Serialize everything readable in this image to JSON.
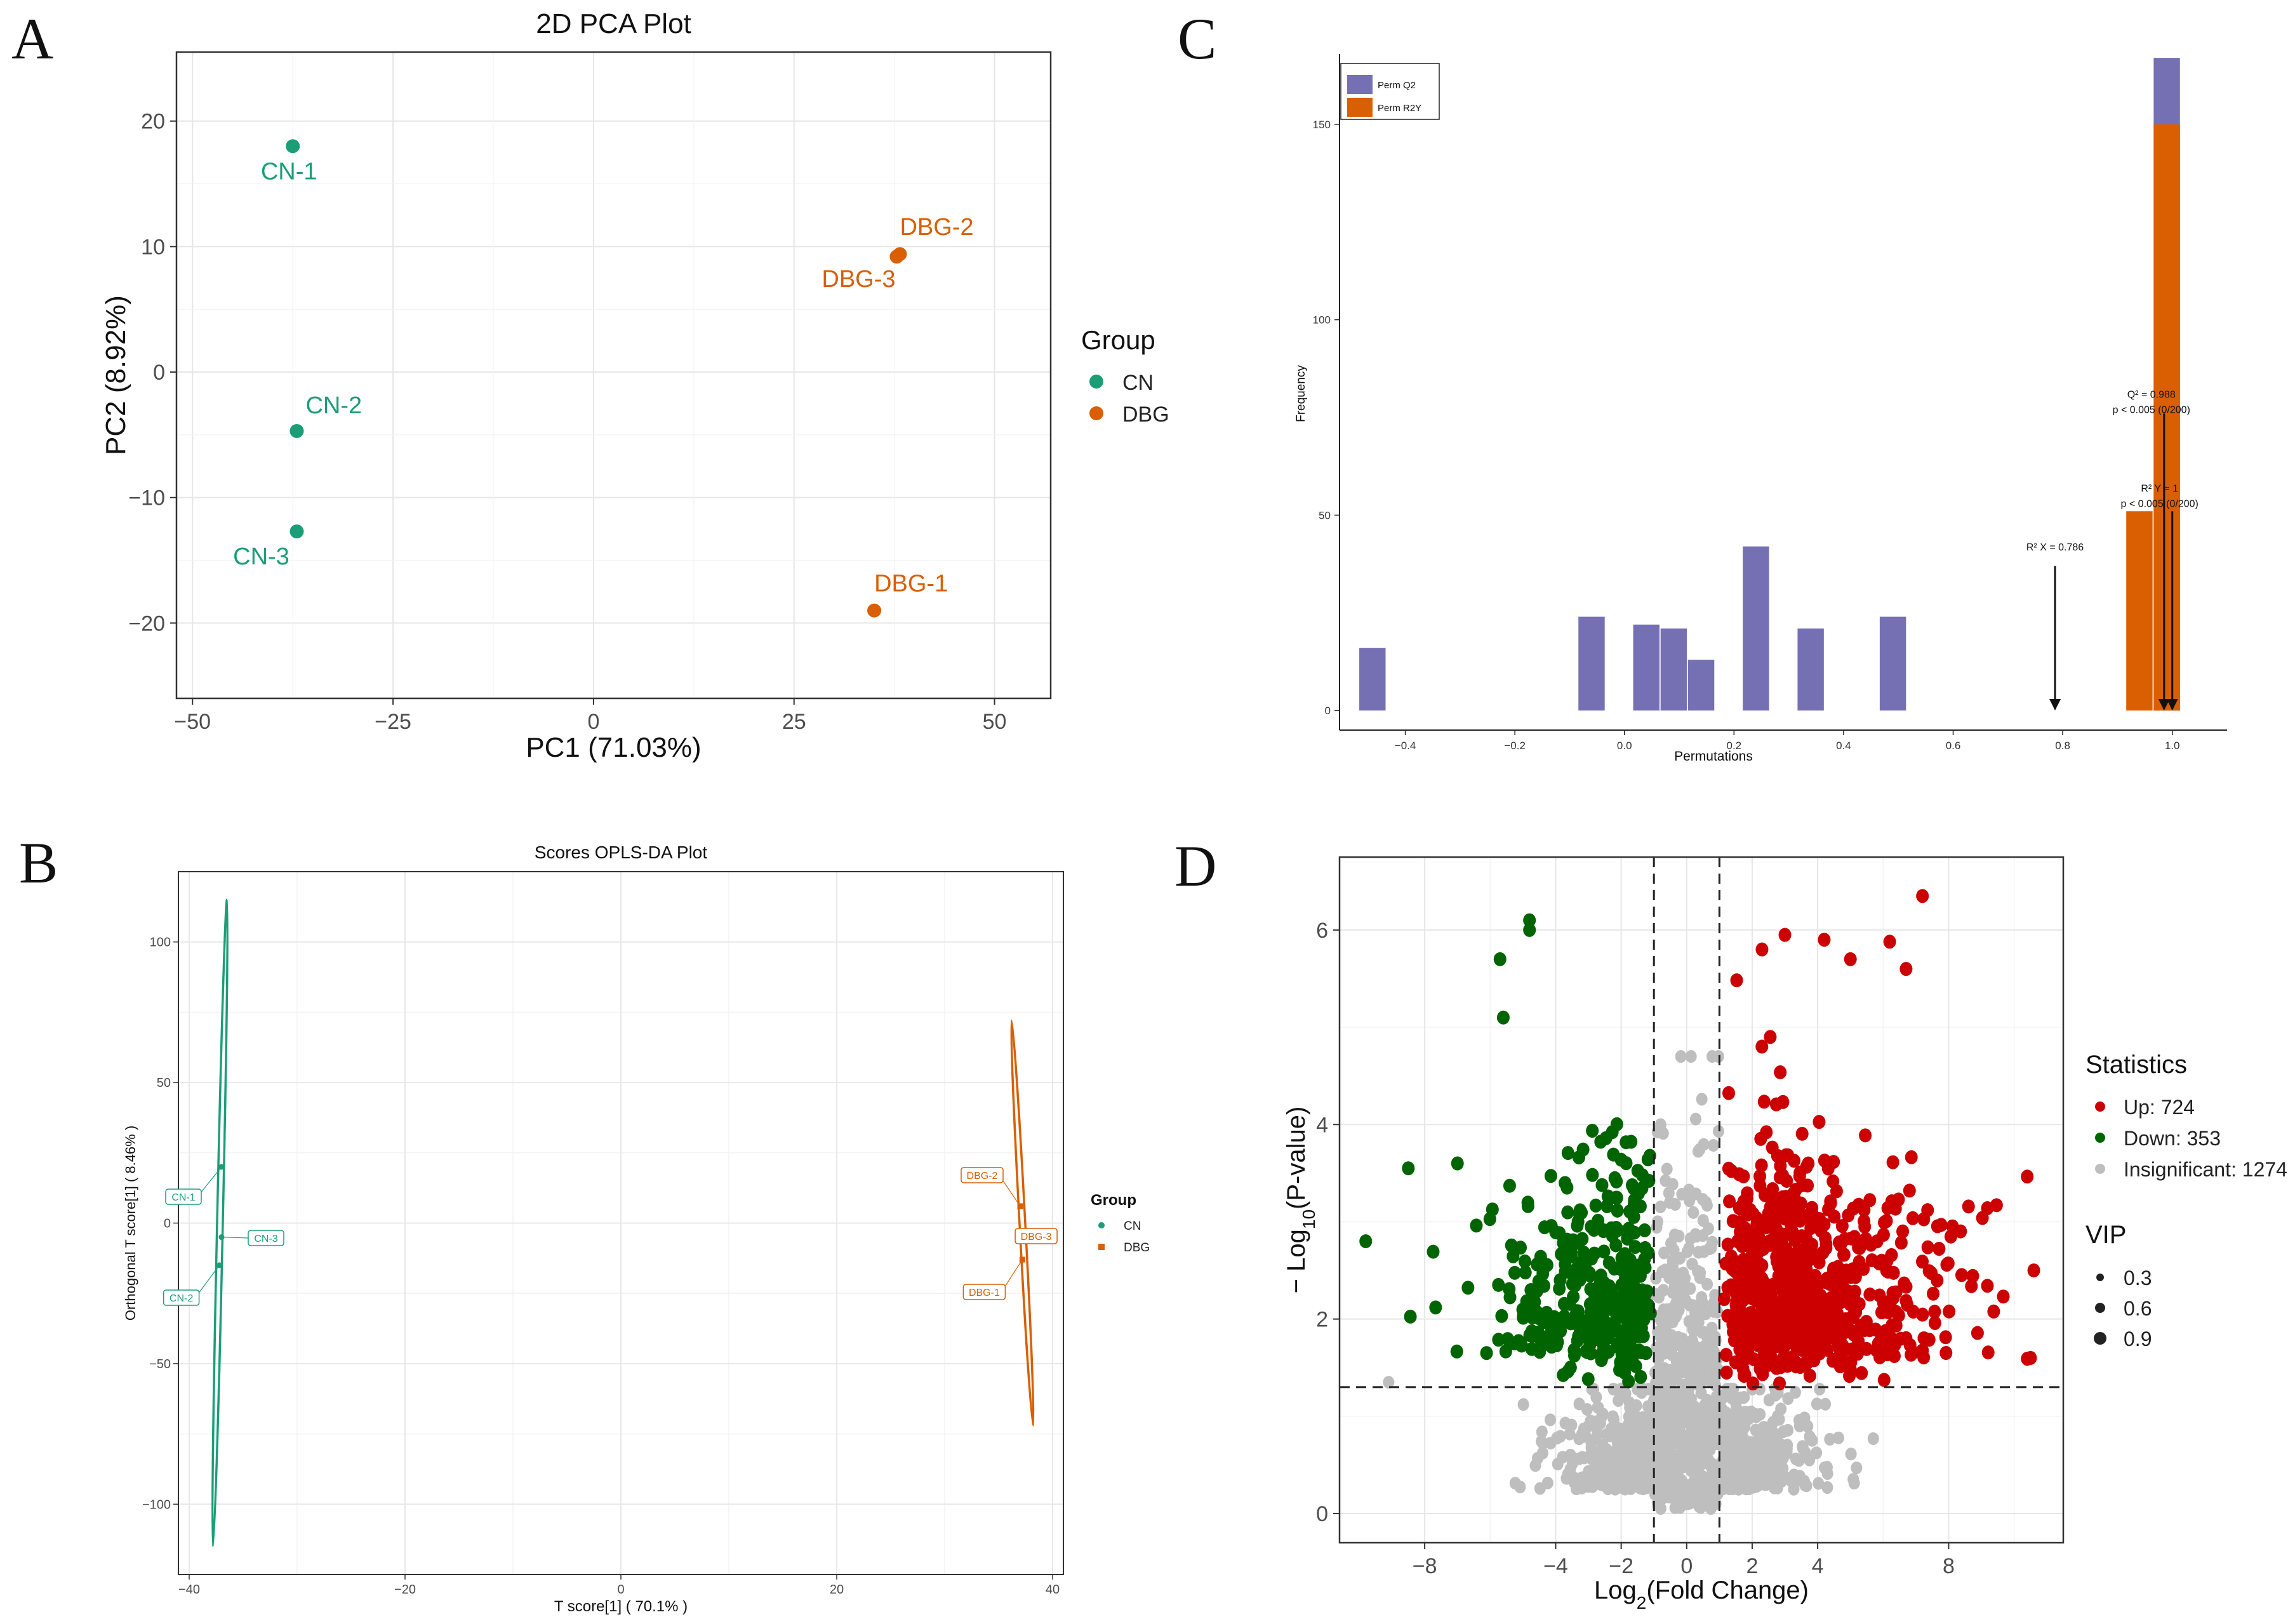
{
  "figure": {
    "panel_labels": [
      "A",
      "B",
      "C",
      "D"
    ]
  },
  "colors": {
    "cn": "#1b9e77",
    "dbg": "#d95f02",
    "perm_q2": "#7570b3",
    "perm_r2y": "#d95f02",
    "up": "#cc0000",
    "down": "#006400",
    "insig": "#bebebe",
    "grid": "#e6e6e6"
  },
  "chart_data": [
    {
      "panel": "A",
      "type": "scatter",
      "title": "2D PCA Plot",
      "xlabel": "PC1 (71.03%)",
      "ylabel": "PC2 (8.92%)",
      "xlim": [
        -52,
        57
      ],
      "ylim": [
        -26,
        25.5
      ],
      "xticks": [
        -50,
        -25,
        0,
        25,
        50
      ],
      "yticks": [
        -20,
        -10,
        0,
        10,
        20
      ],
      "legend_title": "Group",
      "legend": [
        "CN",
        "DBG"
      ],
      "points": [
        {
          "label": "CN-1",
          "group": "CN",
          "x": -37.5,
          "y": 18.0
        },
        {
          "label": "CN-2",
          "group": "CN",
          "x": -37.0,
          "y": -4.7
        },
        {
          "label": "CN-3",
          "group": "CN",
          "x": -37.0,
          "y": -12.7
        },
        {
          "label": "DBG-1",
          "group": "DBG",
          "x": 35.0,
          "y": -19.0
        },
        {
          "label": "DBG-2",
          "group": "DBG",
          "x": 38.2,
          "y": 9.4
        },
        {
          "label": "DBG-3",
          "group": "DBG",
          "x": 37.8,
          "y": 9.2
        }
      ]
    },
    {
      "panel": "B",
      "type": "scatter",
      "title": "Scores OPLS-DA Plot",
      "xlabel": "T score[1] ( 70.1% )",
      "ylabel": "Orthogonal T score[1] ( 8.46% )",
      "xlim": [
        -41,
        41
      ],
      "ylim": [
        -125,
        125
      ],
      "xticks": [
        -40,
        -20,
        0,
        20,
        40
      ],
      "yticks": [
        -100,
        -50,
        0,
        50,
        100
      ],
      "legend_title": "Group",
      "legend": [
        "CN",
        "DBG"
      ],
      "points": [
        {
          "label": "CN-1",
          "group": "CN",
          "x": -37.0,
          "y": 20.0
        },
        {
          "label": "CN-2",
          "group": "CN",
          "x": -37.2,
          "y": -15.0
        },
        {
          "label": "CN-3",
          "group": "CN",
          "x": -37.0,
          "y": -5.0
        },
        {
          "label": "DBG-1",
          "group": "DBG",
          "x": 37.2,
          "y": -13.0
        },
        {
          "label": "DBG-2",
          "group": "DBG",
          "x": 37.0,
          "y": 6.0
        },
        {
          "label": "DBG-3",
          "group": "DBG",
          "x": 37.3,
          "y": -3.0
        }
      ],
      "ellipses": [
        {
          "group": "CN",
          "top": [
            -36.5,
            115
          ],
          "bottom": [
            -37.8,
            -115
          ]
        },
        {
          "group": "DBG",
          "top": [
            36.2,
            72
          ],
          "bottom": [
            38.2,
            -72
          ]
        }
      ]
    },
    {
      "panel": "C",
      "type": "bar",
      "title": "",
      "xlabel": "Permutations",
      "ylabel": "Frequency",
      "xlim": [
        -0.52,
        1.1
      ],
      "ylim": [
        -5,
        168
      ],
      "xticks": [
        -0.4,
        -0.2,
        0.0,
        0.2,
        0.4,
        0.6,
        0.8,
        1.0
      ],
      "yticks": [
        0,
        50,
        100,
        150
      ],
      "legend": [
        "Perm Q2",
        "Perm R2Y"
      ],
      "bar_width": 0.048,
      "series": [
        {
          "name": "Perm Q2",
          "bars": [
            {
              "x": -0.46,
              "value": 16
            },
            {
              "x": -0.06,
              "value": 24
            },
            {
              "x": 0.04,
              "value": 22
            },
            {
              "x": 0.09,
              "value": 21
            },
            {
              "x": 0.14,
              "value": 13
            },
            {
              "x": 0.24,
              "value": 42
            },
            {
              "x": 0.34,
              "value": 21
            },
            {
              "x": 0.49,
              "value": 24
            },
            {
              "x": 0.99,
              "value": 167
            }
          ]
        },
        {
          "name": "Perm R2Y",
          "bars": [
            {
              "x": 0.94,
              "value": 51
            },
            {
              "x": 0.99,
              "value": 150
            }
          ]
        }
      ],
      "annotations": [
        {
          "lines": [
            "Q² = 0.988",
            "p < 0.005 (0/200)"
          ],
          "x": 0.985,
          "y_label": 80,
          "arrow_from": 76,
          "arrow_to": 0
        },
        {
          "lines": [
            "R² Y = 1",
            "p < 0.005 (0/200)"
          ],
          "x": 1.0,
          "y_label": 56,
          "arrow_from": 51,
          "arrow_to": 0
        },
        {
          "lines": [
            "R² X = 0.786"
          ],
          "x": 0.786,
          "y_label": 41,
          "arrow_from": 37,
          "arrow_to": 0
        }
      ]
    },
    {
      "panel": "D",
      "type": "scatter",
      "title": "",
      "xlabel": "Log2(Fold Change)",
      "ylabel": "− Log10(P-value)",
      "xlim": [
        -10.6,
        11.5
      ],
      "ylim": [
        -0.3,
        6.75
      ],
      "xticks": [
        -8,
        -4,
        -2,
        0,
        2,
        4,
        8
      ],
      "yticks": [
        0,
        2,
        4,
        6
      ],
      "thresholds": {
        "x": [
          -1,
          1
        ],
        "y": 1.3
      },
      "legend_title": "Statistics",
      "legend": [
        "Up: 724",
        "Down: 353",
        "Insignificant: 1274"
      ],
      "size_legend_title": "VIP",
      "size_legend": [
        "0.3",
        "0.6",
        "0.9"
      ],
      "counts": {
        "up": 724,
        "down": 353,
        "insignificant": 1274
      },
      "highlight_points": [
        {
          "group": "up",
          "x": 7.2,
          "y": 6.35
        },
        {
          "group": "up",
          "x": 3.0,
          "y": 5.95
        },
        {
          "group": "up",
          "x": 4.2,
          "y": 5.9
        },
        {
          "group": "up",
          "x": 6.2,
          "y": 5.88
        },
        {
          "group": "up",
          "x": 6.7,
          "y": 5.6
        },
        {
          "group": "up",
          "x": 2.3,
          "y": 5.8
        },
        {
          "group": "up",
          "x": 5.0,
          "y": 5.7
        },
        {
          "group": "down",
          "x": -4.8,
          "y": 6.1
        },
        {
          "group": "down",
          "x": -4.8,
          "y": 6.0
        },
        {
          "group": "down",
          "x": -5.7,
          "y": 5.7
        },
        {
          "group": "down",
          "x": -5.6,
          "y": 5.1
        },
        {
          "group": "down",
          "x": -9.8,
          "y": 2.8
        },
        {
          "group": "down",
          "x": -7.0,
          "y": 3.6
        },
        {
          "group": "down",
          "x": -8.5,
          "y": 3.55
        },
        {
          "group": "up",
          "x": 10.6,
          "y": 2.5
        },
        {
          "group": "up",
          "x": 10.5,
          "y": 1.6
        },
        {
          "group": "insig",
          "x": -9.1,
          "y": 1.35
        }
      ]
    }
  ]
}
